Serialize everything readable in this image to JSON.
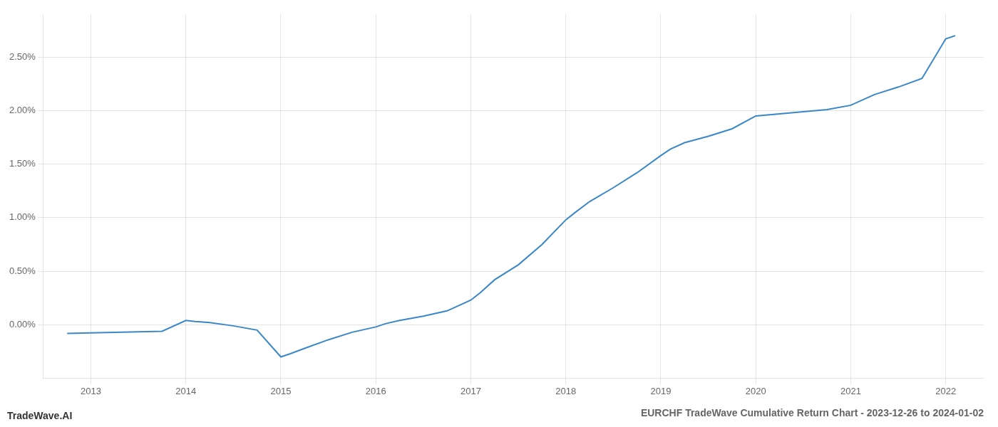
{
  "chart_data": {
    "type": "line",
    "title": "EURCHF TradeWave Cumulative Return Chart - 2023-12-26 to 2024-01-02",
    "annotations": [
      "TradeWave.AI"
    ],
    "x": [
      2012.75,
      2013.0,
      2013.25,
      2013.5,
      2013.75,
      2014.0,
      2014.1,
      2014.25,
      2014.5,
      2014.75,
      2015.0,
      2015.1,
      2015.25,
      2015.5,
      2015.75,
      2016.0,
      2016.1,
      2016.25,
      2016.5,
      2016.75,
      2017.0,
      2017.1,
      2017.25,
      2017.5,
      2017.75,
      2018.0,
      2018.1,
      2018.25,
      2018.5,
      2018.75,
      2019.0,
      2019.1,
      2019.25,
      2019.5,
      2019.75,
      2020.0,
      2020.25,
      2020.5,
      2020.75,
      2021.0,
      2021.25,
      2021.5,
      2021.75,
      2022.0,
      2022.1
    ],
    "values": [
      -0.08,
      -0.075,
      -0.07,
      -0.065,
      -0.06,
      0.04,
      0.03,
      0.02,
      -0.01,
      -0.05,
      -0.3,
      -0.27,
      -0.22,
      -0.14,
      -0.07,
      -0.02,
      0.01,
      0.04,
      0.08,
      0.13,
      0.23,
      0.3,
      0.42,
      0.56,
      0.75,
      0.98,
      1.05,
      1.15,
      1.28,
      1.42,
      1.58,
      1.64,
      1.7,
      1.76,
      1.83,
      1.95,
      1.97,
      1.99,
      2.01,
      2.05,
      2.15,
      2.22,
      2.3,
      2.67,
      2.7
    ],
    "color": "#3a87c8",
    "xlim": [
      2012.5,
      2022.4
    ],
    "xticks": [
      2013,
      2014,
      2015,
      2016,
      2017,
      2018,
      2019,
      2020,
      2021,
      2022
    ],
    "ylim": [
      -0.5,
      2.9
    ],
    "yticks": [
      {
        "value": 0.0,
        "label": "0.00%"
      },
      {
        "value": 0.5,
        "label": "0.50%"
      },
      {
        "value": 1.0,
        "label": "1.00%"
      },
      {
        "value": 1.5,
        "label": "1.50%"
      },
      {
        "value": 2.0,
        "label": "2.00%"
      },
      {
        "value": 2.5,
        "label": "2.50%"
      }
    ],
    "grid": true
  }
}
